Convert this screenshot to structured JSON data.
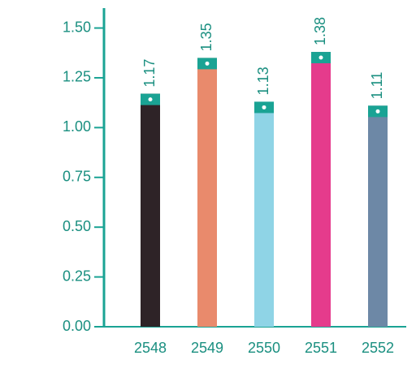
{
  "chart_data": {
    "type": "bar",
    "categories": [
      "2548",
      "2549",
      "2550",
      "2551",
      "2552"
    ],
    "values": [
      1.17,
      1.35,
      1.13,
      1.38,
      1.11
    ],
    "colors": [
      "#2e2327",
      "#e98a6c",
      "#8fd4e6",
      "#e53b8c",
      "#6d88a6"
    ],
    "ylim": [
      0,
      1.6
    ],
    "yticks": [
      {
        "value": 0,
        "label": "0.00"
      },
      {
        "value": 0.25,
        "label": "0.25"
      },
      {
        "value": 0.5,
        "label": "0.50"
      },
      {
        "value": 0.75,
        "label": "0.75"
      },
      {
        "value": 1,
        "label": "1.00"
      },
      {
        "value": 1.25,
        "label": "1.25"
      },
      {
        "value": 1.5,
        "label": "1.50"
      }
    ],
    "axis_color": "#1aa394"
  }
}
